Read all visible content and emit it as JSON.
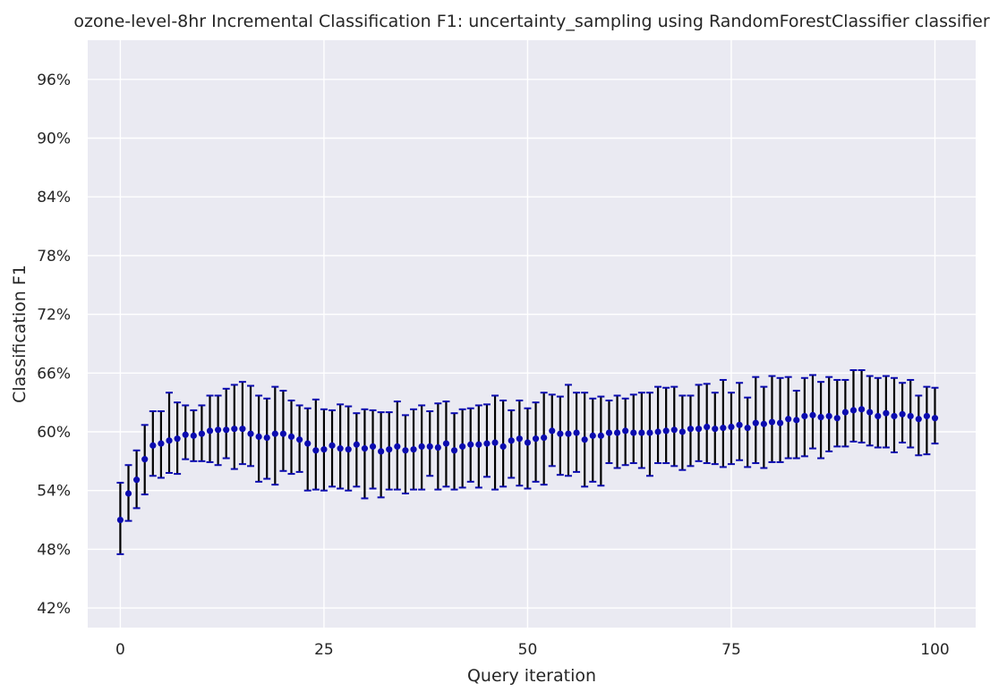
{
  "chart_data": {
    "type": "scatter",
    "title": "ozone-level-8hr Incremental Classification F1: uncertainty_sampling using RandomForestClassifier classifier",
    "xlabel": "Query iteration",
    "ylabel": "Classification F1",
    "xlim": [
      -4,
      105
    ],
    "ylim": [
      0.4,
      1.0
    ],
    "xticks": [
      0,
      25,
      50,
      75,
      100
    ],
    "xtick_labels": [
      "0",
      "25",
      "50",
      "75",
      "100"
    ],
    "yticks": [
      0.42,
      0.48,
      0.54,
      0.6,
      0.66,
      0.72,
      0.78,
      0.84,
      0.9,
      0.96
    ],
    "ytick_labels": [
      "42%",
      "48%",
      "54%",
      "60%",
      "66%",
      "72%",
      "78%",
      "84%",
      "90%",
      "96%"
    ],
    "grid": true,
    "background": "#eaeaf2",
    "grid_color": "#ffffff",
    "marker_color": "#0b0bb0",
    "errorbar_color": "#000000",
    "cap_color": "#0b0bb0",
    "series": [
      {
        "name": "uncertainty_sampling",
        "x": [
          0,
          1,
          2,
          3,
          4,
          5,
          6,
          7,
          8,
          9,
          10,
          11,
          12,
          13,
          14,
          15,
          16,
          17,
          18,
          19,
          20,
          21,
          22,
          23,
          24,
          25,
          26,
          27,
          28,
          29,
          30,
          31,
          32,
          33,
          34,
          35,
          36,
          37,
          38,
          39,
          40,
          41,
          42,
          43,
          44,
          45,
          46,
          47,
          48,
          49,
          50,
          51,
          52,
          53,
          54,
          55,
          56,
          57,
          58,
          59,
          60,
          61,
          62,
          63,
          64,
          65,
          66,
          67,
          68,
          69,
          70,
          71,
          72,
          73,
          74,
          75,
          76,
          77,
          78,
          79,
          80,
          81,
          82,
          83,
          84,
          85,
          86,
          87,
          88,
          89,
          90,
          91,
          92,
          93,
          94,
          95,
          96,
          97,
          98,
          99,
          100
        ],
        "y": [
          0.51,
          0.537,
          0.551,
          0.572,
          0.586,
          0.588,
          0.591,
          0.593,
          0.597,
          0.596,
          0.598,
          0.601,
          0.602,
          0.602,
          0.603,
          0.603,
          0.598,
          0.595,
          0.594,
          0.598,
          0.598,
          0.595,
          0.592,
          0.588,
          0.581,
          0.582,
          0.586,
          0.583,
          0.582,
          0.587,
          0.583,
          0.585,
          0.58,
          0.582,
          0.585,
          0.581,
          0.582,
          0.585,
          0.585,
          0.584,
          0.588,
          0.581,
          0.585,
          0.587,
          0.587,
          0.588,
          0.589,
          0.585,
          0.591,
          0.593,
          0.589,
          0.593,
          0.594,
          0.601,
          0.598,
          0.598,
          0.599,
          0.592,
          0.596,
          0.596,
          0.599,
          0.599,
          0.601,
          0.599,
          0.599,
          0.599,
          0.6,
          0.601,
          0.602,
          0.6,
          0.603,
          0.603,
          0.605,
          0.603,
          0.604,
          0.605,
          0.607,
          0.604,
          0.609,
          0.608,
          0.61,
          0.609,
          0.613,
          0.612,
          0.616,
          0.617,
          0.615,
          0.616,
          0.614,
          0.62,
          0.622,
          0.623,
          0.62,
          0.616,
          0.619,
          0.616,
          0.618,
          0.616,
          0.613,
          0.616,
          0.614
        ],
        "yerr_low": [
          0.475,
          0.509,
          0.522,
          0.536,
          0.555,
          0.553,
          0.558,
          0.557,
          0.572,
          0.57,
          0.57,
          0.569,
          0.566,
          0.573,
          0.562,
          0.567,
          0.565,
          0.549,
          0.552,
          0.546,
          0.56,
          0.557,
          0.559,
          0.54,
          0.541,
          0.54,
          0.544,
          0.542,
          0.54,
          0.544,
          0.532,
          0.542,
          0.533,
          0.541,
          0.541,
          0.537,
          0.541,
          0.541,
          0.555,
          0.541,
          0.544,
          0.541,
          0.543,
          0.549,
          0.543,
          0.554,
          0.541,
          0.544,
          0.553,
          0.545,
          0.542,
          0.549,
          0.546,
          0.565,
          0.556,
          0.555,
          0.559,
          0.544,
          0.549,
          0.545,
          0.568,
          0.563,
          0.566,
          0.568,
          0.563,
          0.555,
          0.568,
          0.568,
          0.565,
          0.561,
          0.565,
          0.57,
          0.568,
          0.567,
          0.564,
          0.567,
          0.571,
          0.564,
          0.568,
          0.563,
          0.569,
          0.569,
          0.573,
          0.573,
          0.575,
          0.583,
          0.573,
          0.58,
          0.585,
          0.585,
          0.59,
          0.589,
          0.586,
          0.584,
          0.584,
          0.579,
          0.589,
          0.584,
          0.576,
          0.577,
          0.588
        ],
        "yerr_high": [
          0.548,
          0.566,
          0.581,
          0.607,
          0.621,
          0.621,
          0.64,
          0.63,
          0.627,
          0.622,
          0.627,
          0.637,
          0.637,
          0.644,
          0.648,
          0.651,
          0.647,
          0.637,
          0.634,
          0.646,
          0.642,
          0.632,
          0.627,
          0.624,
          0.633,
          0.623,
          0.622,
          0.628,
          0.626,
          0.619,
          0.623,
          0.622,
          0.62,
          0.62,
          0.631,
          0.617,
          0.623,
          0.627,
          0.621,
          0.629,
          0.631,
          0.619,
          0.623,
          0.624,
          0.627,
          0.628,
          0.637,
          0.632,
          0.622,
          0.632,
          0.624,
          0.63,
          0.64,
          0.638,
          0.636,
          0.648,
          0.64,
          0.64,
          0.634,
          0.636,
          0.632,
          0.637,
          0.634,
          0.638,
          0.64,
          0.64,
          0.646,
          0.645,
          0.646,
          0.637,
          0.637,
          0.648,
          0.649,
          0.64,
          0.653,
          0.64,
          0.65,
          0.635,
          0.656,
          0.646,
          0.657,
          0.655,
          0.656,
          0.642,
          0.655,
          0.658,
          0.651,
          0.656,
          0.653,
          0.653,
          0.663,
          0.663,
          0.657,
          0.655,
          0.657,
          0.655,
          0.65,
          0.653,
          0.637,
          0.646,
          0.645
        ]
      }
    ]
  }
}
